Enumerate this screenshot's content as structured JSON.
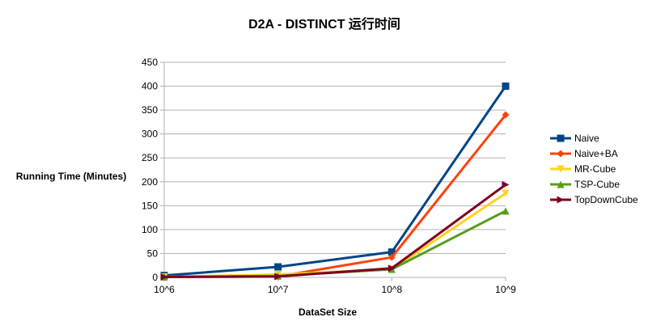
{
  "chart_data": {
    "type": "line",
    "title": "D2A - DISTINCT  运行时间",
    "xlabel": "DataSet Size",
    "ylabel": "Running Time (Minutes)",
    "categories": [
      "10^6",
      "10^7",
      "10^8",
      "10^9"
    ],
    "ylim": [
      0,
      450
    ],
    "yticks": [
      0,
      50,
      100,
      150,
      200,
      250,
      300,
      350,
      400,
      450
    ],
    "grid": true,
    "legend_position": "right",
    "series": [
      {
        "name": "Naive",
        "values": [
          4,
          22,
          53,
          400
        ],
        "color": "#004586",
        "marker": "square"
      },
      {
        "name": "Naive+BA",
        "values": [
          1,
          2,
          42,
          340
        ],
        "color": "#ff420e",
        "marker": "diamond"
      },
      {
        "name": "MR-Cube",
        "values": [
          1,
          6,
          17,
          176
        ],
        "color": "#ffd320",
        "marker": "triangle-down"
      },
      {
        "name": "TSP-Cube",
        "values": [
          1,
          3,
          17,
          139
        ],
        "color": "#579d1c",
        "marker": "triangle-up"
      },
      {
        "name": "TopDownCube",
        "values": [
          1,
          2,
          19,
          194
        ],
        "color": "#7e0021",
        "marker": "triangle-right"
      }
    ]
  }
}
